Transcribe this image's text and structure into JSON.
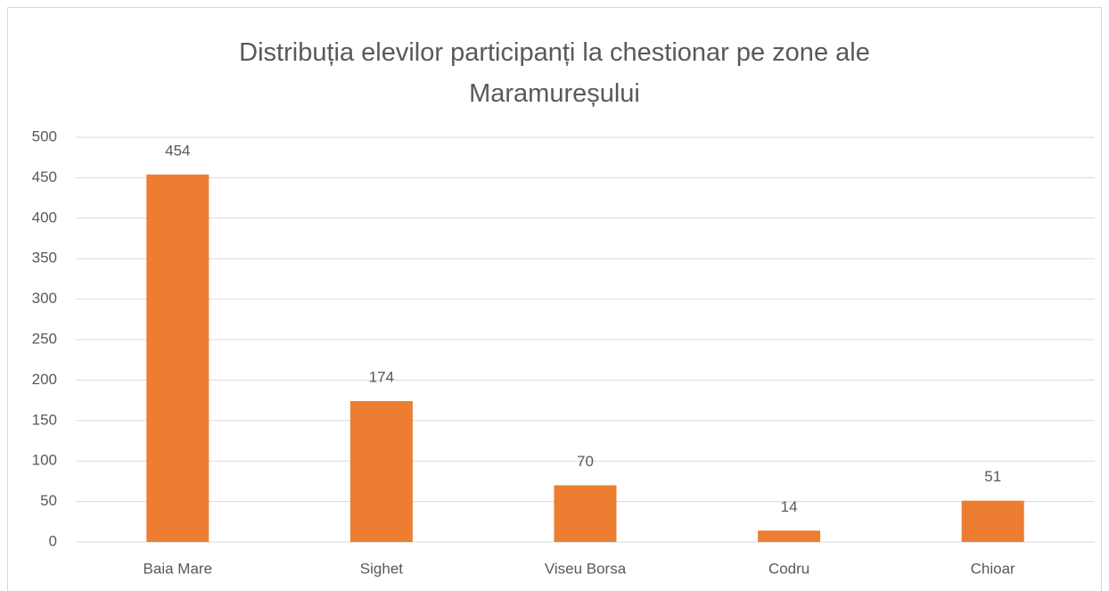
{
  "chart_data": {
    "type": "bar",
    "title": "Distribuția elevilor participanți la chestionar pe zone ale Maramureșului",
    "categories": [
      "Baia Mare",
      "Sighet",
      "Viseu Borsa",
      "Codru",
      "Chioar"
    ],
    "values": [
      454,
      174,
      70,
      14,
      51
    ],
    "color": "#ed7d31",
    "ylim": [
      0,
      500
    ],
    "yticks": [
      0,
      50,
      100,
      150,
      200,
      250,
      300,
      350,
      400,
      450,
      500
    ],
    "grid": true
  }
}
